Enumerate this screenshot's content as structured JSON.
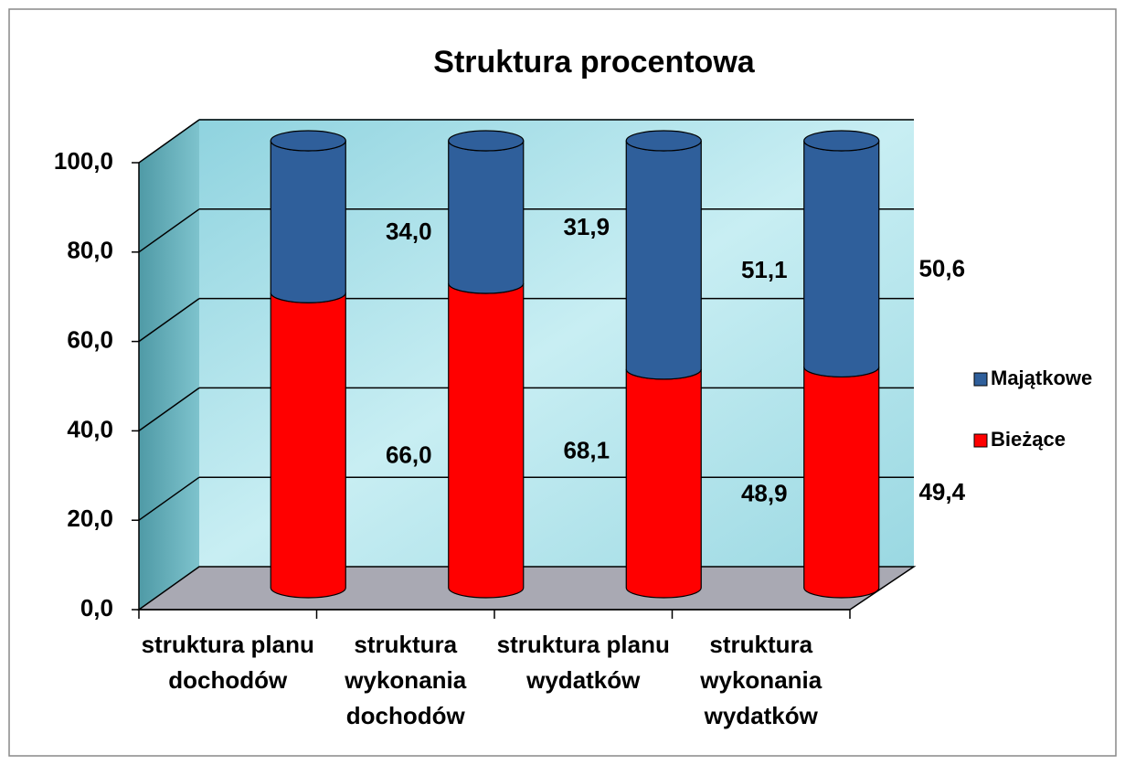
{
  "chart_data": {
    "type": "stacked-cylinder",
    "title": "Struktura procentowa",
    "categories": [
      "struktura planu dochodów",
      "struktura wykonania dochodów",
      "struktura planu wydatków",
      "struktura wykonania wydatków"
    ],
    "series": [
      {
        "name": "Bieżące",
        "color": "#ff0000",
        "values": [
          66.0,
          68.1,
          48.9,
          49.4
        ],
        "value_labels": [
          "66,0",
          "68,1",
          "48,9",
          "49,4"
        ]
      },
      {
        "name": "Majątkowe",
        "color": "#2f5f9b",
        "values": [
          34.0,
          31.9,
          51.1,
          50.6
        ],
        "value_labels": [
          "34,0",
          "31,9",
          "51,1",
          "50,6"
        ]
      }
    ],
    "ylim": [
      0,
      100
    ],
    "yticks": [
      {
        "value": 0,
        "label": "0,0"
      },
      {
        "value": 20,
        "label": "20,0"
      },
      {
        "value": 40,
        "label": "40,0"
      },
      {
        "value": 60,
        "label": "60,0"
      },
      {
        "value": 80,
        "label": "80,0"
      },
      {
        "value": 100,
        "label": "100,0"
      }
    ],
    "grid": true,
    "legend": "right"
  }
}
